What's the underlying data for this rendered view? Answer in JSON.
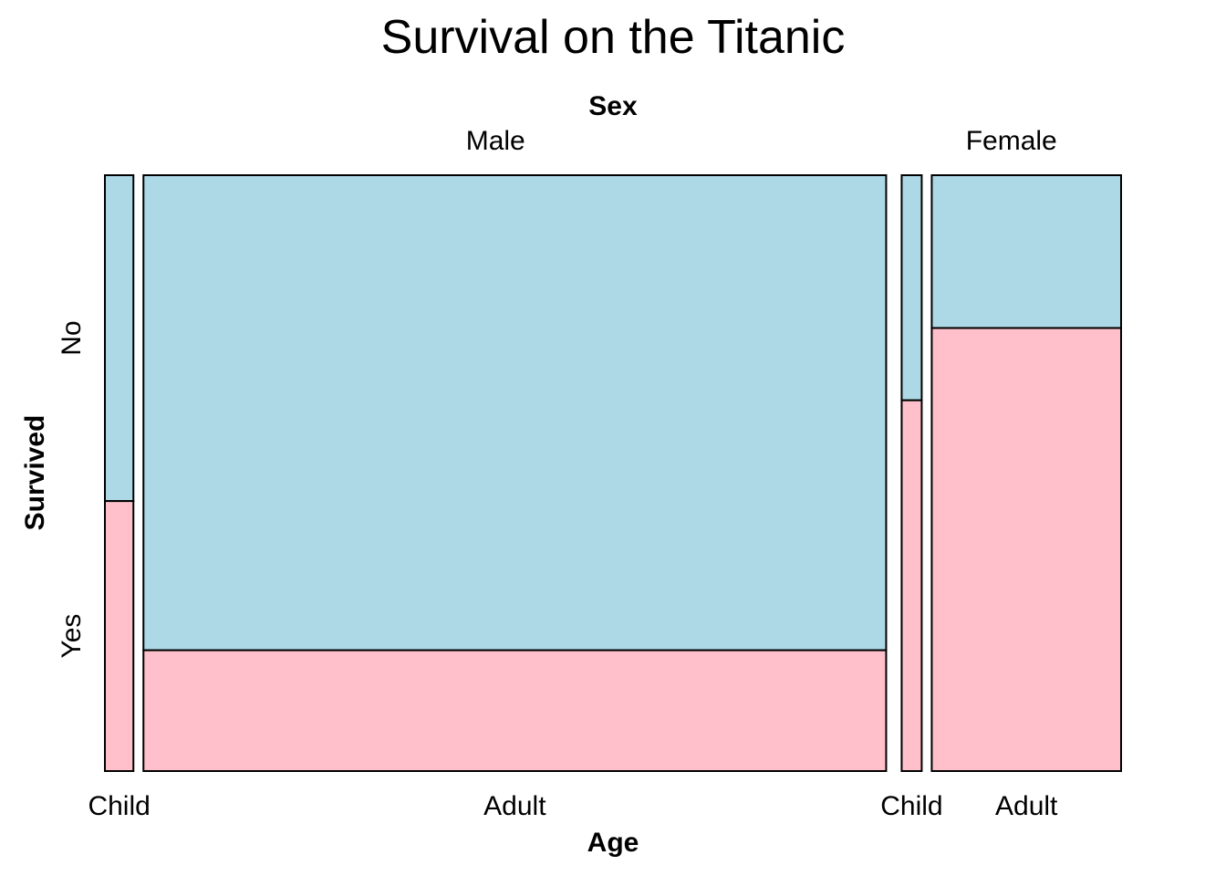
{
  "chart_data": {
    "type": "mosaic",
    "title": "Survival on the Titanic",
    "top_variable": "Sex",
    "x_variable": "Age",
    "y_variable": "Survived",
    "sex_levels": [
      "Male",
      "Female"
    ],
    "age_levels": [
      "Child",
      "Adult"
    ],
    "survived_levels": [
      "No",
      "Yes"
    ],
    "colors": {
      "No": "#add8e6",
      "Yes": "#ffc0cb"
    },
    "groups": [
      {
        "sex": "Male",
        "age": "Child",
        "counts": {
          "No": 35,
          "Yes": 29
        }
      },
      {
        "sex": "Male",
        "age": "Adult",
        "counts": {
          "No": 1329,
          "Yes": 338
        }
      },
      {
        "sex": "Female",
        "age": "Child",
        "counts": {
          "No": 17,
          "Yes": 28
        }
      },
      {
        "sex": "Female",
        "age": "Adult",
        "counts": {
          "No": 109,
          "Yes": 316
        }
      }
    ]
  }
}
